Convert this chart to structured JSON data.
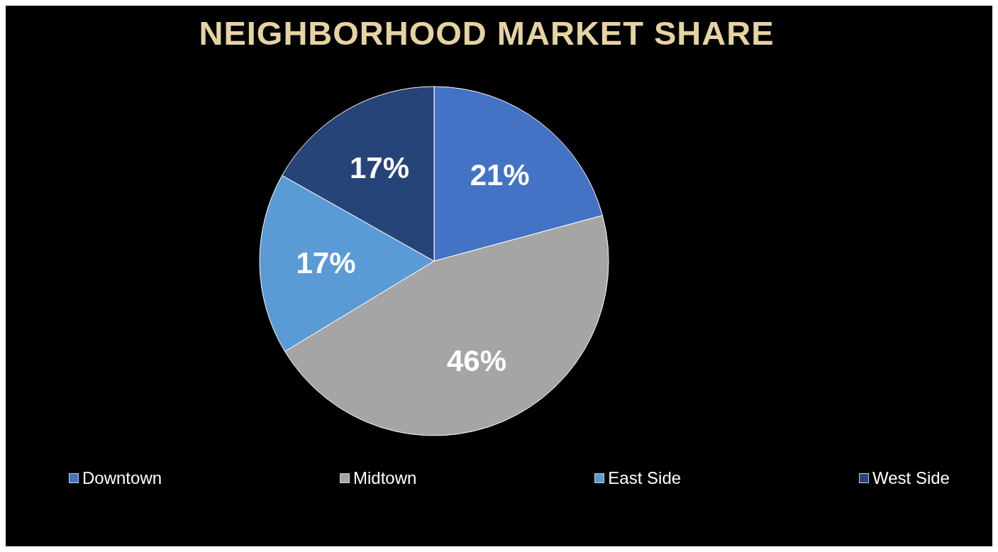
{
  "chart_data": {
    "type": "pie",
    "title": "NEIGHBORHOOD MARKET SHARE",
    "categories": [
      "Downtown",
      "Midtown",
      "East Side",
      "West Side"
    ],
    "values": [
      21,
      46,
      17,
      17
    ],
    "value_labels": [
      "21%",
      "46%",
      "17%",
      "17%"
    ],
    "colors": [
      "#4472c4",
      "#a5a5a5",
      "#5b9bd5",
      "#264478"
    ],
    "legend": "bottom"
  }
}
